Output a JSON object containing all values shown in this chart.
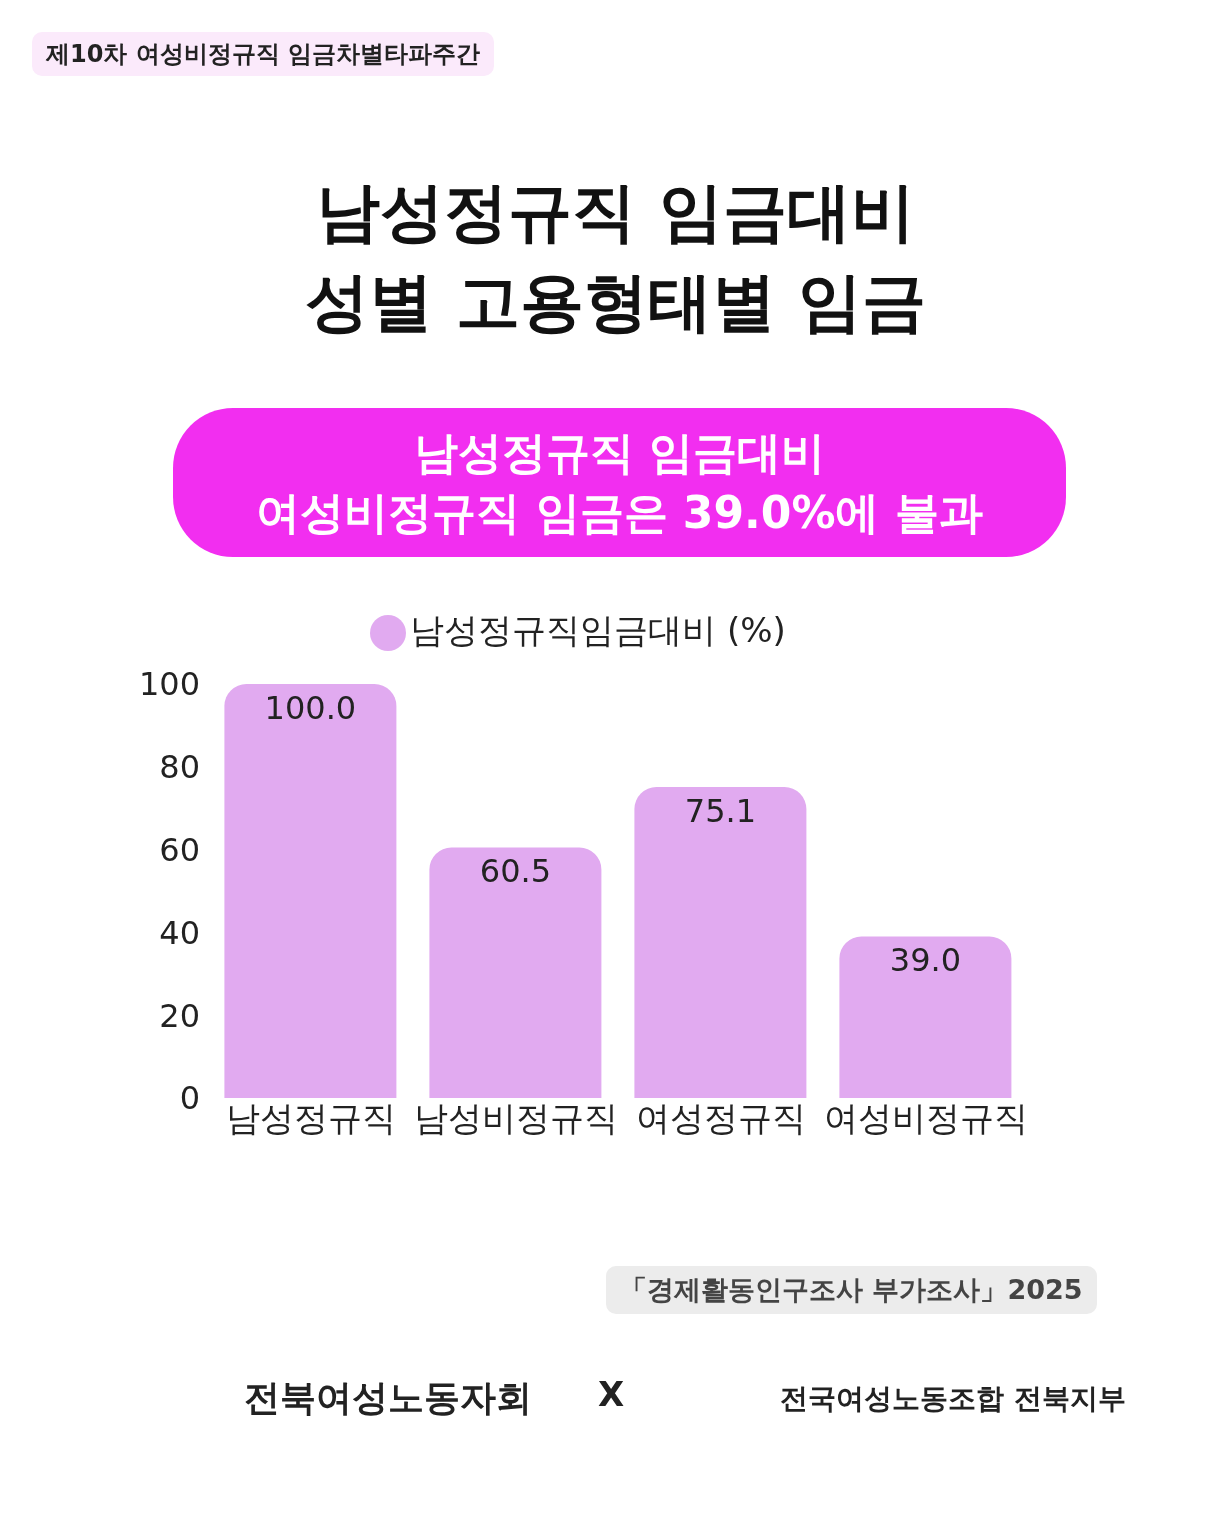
{
  "chart_data": {
    "type": "bar",
    "title": "남성정규직 임금대비\n성별 고용형태별 임금",
    "subtitle": "남성정규직 임금대비\n여성비정규직 임금은 39.0%에 불과",
    "categories": [
      "남성정규직",
      "남성비정규직",
      "여성정규직",
      "여성비정규직"
    ],
    "series": [
      {
        "name": "남성정규직임금대비 (%)",
        "color": "#e1aaf0",
        "values": [
          100.0,
          60.5,
          75.1,
          39.0
        ],
        "value_labels": [
          "100.0",
          "60.5",
          "75.1",
          "39.0"
        ]
      }
    ],
    "ylim": [
      0,
      100
    ],
    "yticks": [
      0,
      20,
      40,
      60,
      80,
      100
    ],
    "grid": false,
    "legend": "top",
    "annotations": [
      "제10차 여성비정규직 임금차별타파주간",
      "「경제활동인구조사 부가조사」2025",
      "전북여성노동자회",
      "X",
      "전국여성노동조합 전북지부"
    ]
  }
}
